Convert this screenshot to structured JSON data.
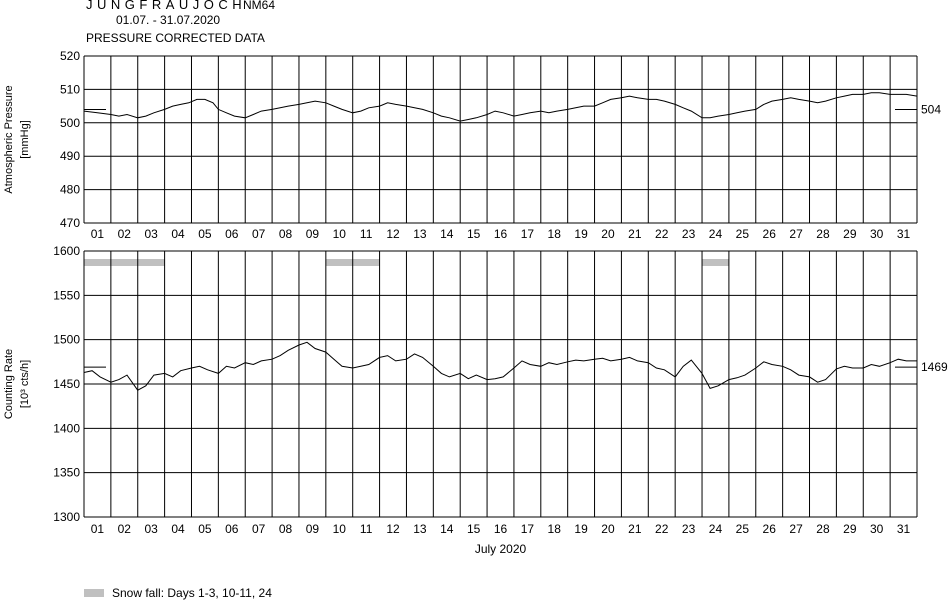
{
  "header": {
    "station": "JUNGFRAUJOCH",
    "station_code": "NM64",
    "date_range": "01.07. - 31.07.2020",
    "subtitle": "PRESSURE CORRECTED DATA"
  },
  "chart_data": [
    {
      "type": "line",
      "name": "pressure",
      "ylabel": "Atmospheric Pressure",
      "yunit": "[mmHg]",
      "ylim": [
        470,
        520
      ],
      "yticks": [
        470,
        480,
        490,
        500,
        510,
        520
      ],
      "xlim": [
        1,
        32
      ],
      "day_labels": [
        "01",
        "02",
        "03",
        "04",
        "05",
        "06",
        "07",
        "08",
        "09",
        "10",
        "11",
        "12",
        "13",
        "14",
        "15",
        "16",
        "17",
        "18",
        "19",
        "20",
        "21",
        "22",
        "23",
        "24",
        "25",
        "26",
        "27",
        "28",
        "29",
        "30",
        "31"
      ],
      "grid": true,
      "mean_value": 504,
      "mean_label": "504",
      "x": [
        1.0,
        1.5,
        2.0,
        2.3,
        2.6,
        3.0,
        3.3,
        3.6,
        4.0,
        4.3,
        4.6,
        4.9,
        5.2,
        5.5,
        5.8,
        6.0,
        6.3,
        6.6,
        7.0,
        7.3,
        7.6,
        8.0,
        8.3,
        8.6,
        9.0,
        9.3,
        9.6,
        10.0,
        10.3,
        10.6,
        11.0,
        11.3,
        11.6,
        12.0,
        12.3,
        12.6,
        13.0,
        13.3,
        13.6,
        14.0,
        14.3,
        14.6,
        15.0,
        15.3,
        15.6,
        16.0,
        16.3,
        16.6,
        17.0,
        17.3,
        17.6,
        18.0,
        18.3,
        18.6,
        19.0,
        19.3,
        19.6,
        20.0,
        20.3,
        20.6,
        21.0,
        21.3,
        21.6,
        22.0,
        22.3,
        22.6,
        23.0,
        23.3,
        23.6,
        24.0,
        24.3,
        24.6,
        25.0,
        25.3,
        25.6,
        26.0,
        26.3,
        26.6,
        27.0,
        27.3,
        27.6,
        28.0,
        28.3,
        28.6,
        29.0,
        29.3,
        29.6,
        30.0,
        30.3,
        30.6,
        31.0,
        31.3,
        31.6,
        32.0
      ],
      "y": [
        503.5,
        503.0,
        502.5,
        502.0,
        502.5,
        501.5,
        502.0,
        503.0,
        504.0,
        505.0,
        505.5,
        506.0,
        507.0,
        507.0,
        506.0,
        504.0,
        503.0,
        502.0,
        501.5,
        502.5,
        503.5,
        504.0,
        504.5,
        505.0,
        505.5,
        506.0,
        506.5,
        506.0,
        505.0,
        504.0,
        503.0,
        503.5,
        504.5,
        505.0,
        506.0,
        505.5,
        505.0,
        504.5,
        504.0,
        503.0,
        502.0,
        501.5,
        500.5,
        501.0,
        501.5,
        502.5,
        503.5,
        503.0,
        502.0,
        502.5,
        503.0,
        503.5,
        503.0,
        503.5,
        504.0,
        504.5,
        505.0,
        505.0,
        506.0,
        507.0,
        507.5,
        508.0,
        507.5,
        507.0,
        507.0,
        506.5,
        505.5,
        504.5,
        503.5,
        501.5,
        501.5,
        502.0,
        502.5,
        503.0,
        503.5,
        504.0,
        505.5,
        506.5,
        507.0,
        507.5,
        507.0,
        506.5,
        506.0,
        506.5,
        507.5,
        508.0,
        508.5,
        508.5,
        509.0,
        509.0,
        508.5,
        508.5,
        508.5,
        508.0
      ]
    },
    {
      "type": "line",
      "name": "counting_rate",
      "ylabel": "Counting Rate",
      "yunit": "[10³ cts/h]",
      "ylim": [
        1300,
        1600
      ],
      "yticks": [
        1300,
        1350,
        1400,
        1450,
        1500,
        1550,
        1600
      ],
      "xlim": [
        1,
        32
      ],
      "day_labels": [
        "01",
        "02",
        "03",
        "04",
        "05",
        "06",
        "07",
        "08",
        "09",
        "10",
        "11",
        "12",
        "13",
        "14",
        "15",
        "16",
        "17",
        "18",
        "19",
        "20",
        "21",
        "22",
        "23",
        "24",
        "25",
        "26",
        "27",
        "28",
        "29",
        "30",
        "31"
      ],
      "xlabel": "July 2020",
      "grid": true,
      "mean_value": 1469,
      "mean_label": "1469",
      "snow_days": [
        [
          1,
          3
        ],
        [
          10,
          11
        ],
        [
          24,
          24
        ]
      ],
      "x": [
        1.0,
        1.3,
        1.6,
        2.0,
        2.3,
        2.6,
        3.0,
        3.3,
        3.6,
        4.0,
        4.3,
        4.6,
        5.0,
        5.3,
        5.6,
        6.0,
        6.3,
        6.6,
        7.0,
        7.3,
        7.6,
        8.0,
        8.3,
        8.6,
        9.0,
        9.3,
        9.6,
        10.0,
        10.3,
        10.6,
        11.0,
        11.3,
        11.6,
        12.0,
        12.3,
        12.6,
        13.0,
        13.3,
        13.6,
        14.0,
        14.3,
        14.6,
        15.0,
        15.3,
        15.6,
        16.0,
        16.3,
        16.6,
        17.0,
        17.3,
        17.6,
        18.0,
        18.3,
        18.6,
        19.0,
        19.3,
        19.6,
        20.0,
        20.3,
        20.6,
        21.0,
        21.3,
        21.6,
        22.0,
        22.3,
        22.6,
        23.0,
        23.3,
        23.6,
        24.0,
        24.3,
        24.6,
        25.0,
        25.3,
        25.6,
        26.0,
        26.3,
        26.6,
        27.0,
        27.3,
        27.6,
        28.0,
        28.3,
        28.6,
        29.0,
        29.3,
        29.6,
        30.0,
        30.3,
        30.6,
        31.0,
        31.3,
        31.6,
        32.0
      ],
      "y": [
        1463,
        1465,
        1458,
        1452,
        1455,
        1460,
        1443,
        1448,
        1460,
        1462,
        1458,
        1465,
        1468,
        1470,
        1466,
        1462,
        1470,
        1468,
        1474,
        1472,
        1476,
        1478,
        1482,
        1488,
        1494,
        1497,
        1490,
        1486,
        1478,
        1470,
        1468,
        1470,
        1472,
        1480,
        1482,
        1476,
        1478,
        1484,
        1480,
        1470,
        1462,
        1458,
        1462,
        1456,
        1460,
        1455,
        1456,
        1458,
        1468,
        1476,
        1472,
        1470,
        1474,
        1472,
        1475,
        1477,
        1476,
        1478,
        1479,
        1476,
        1478,
        1480,
        1476,
        1474,
        1468,
        1466,
        1458,
        1470,
        1477,
        1462,
        1445,
        1448,
        1455,
        1457,
        1460,
        1468,
        1475,
        1472,
        1470,
        1466,
        1460,
        1458,
        1452,
        1455,
        1467,
        1470,
        1468,
        1468,
        1472,
        1470,
        1474,
        1478,
        1476,
        1476
      ]
    }
  ],
  "legend": {
    "snow_label": "Snow fall: Days 1-3, 10-11, 24",
    "snow_color": "#c0c0c0"
  },
  "colors": {
    "line": "#000000",
    "grid": "#000000",
    "snow": "#c0c0c0"
  }
}
